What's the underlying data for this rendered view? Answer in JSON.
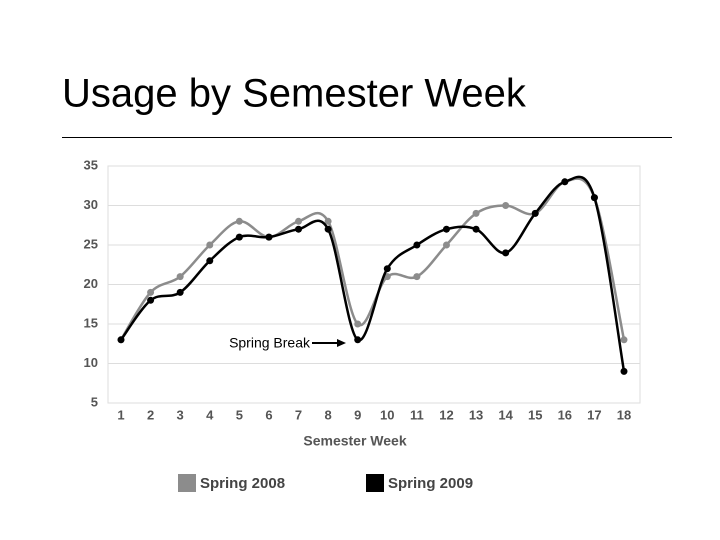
{
  "chart_data": {
    "type": "line",
    "title": "Usage by Semester Week",
    "xlabel": "Semester Week",
    "categories": [
      "1",
      "2",
      "3",
      "4",
      "5",
      "6",
      "7",
      "8",
      "9",
      "10",
      "11",
      "12",
      "13",
      "14",
      "15",
      "16",
      "17",
      "18"
    ],
    "series": [
      {
        "name": "Spring 2008",
        "color": "#8c8c8c",
        "values": [
          13,
          19,
          21,
          25,
          28,
          26,
          28,
          28,
          15,
          21,
          21,
          25,
          29,
          30,
          29,
          33,
          31,
          13
        ]
      },
      {
        "name": "Spring 2009",
        "color": "#000000",
        "values": [
          13,
          18,
          19,
          23,
          26,
          26,
          27,
          27,
          13,
          22,
          25,
          27,
          27,
          24,
          29,
          33,
          31,
          9
        ]
      }
    ],
    "ylim": [
      5,
      35
    ],
    "yticks": [
      5,
      10,
      15,
      20,
      25,
      30,
      35
    ],
    "grid": true,
    "annotation": "Spring Break",
    "legend": "bottom"
  }
}
